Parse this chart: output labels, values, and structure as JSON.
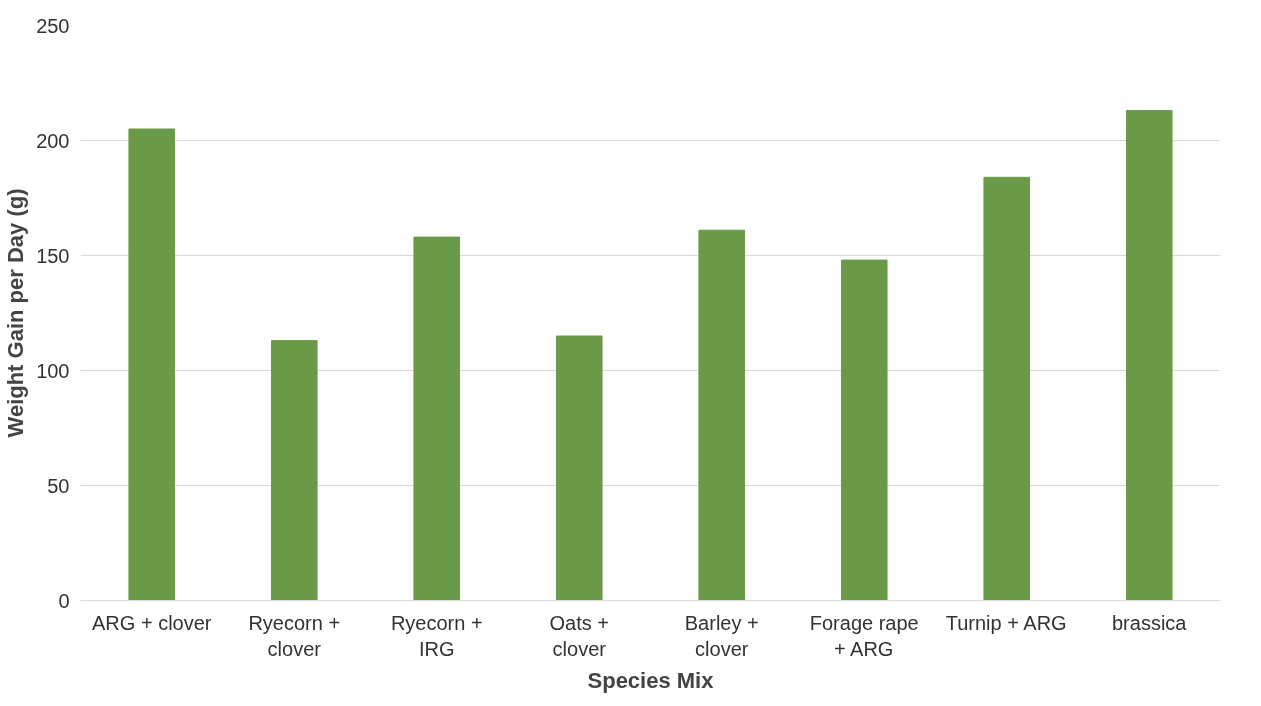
{
  "chart_data": {
    "type": "bar",
    "xlabel": "Species Mix",
    "ylabel": "Weight Gain per Day (g)",
    "categories": [
      "ARG + clover",
      "Ryecorn + clover",
      "Ryecorn + IRG",
      "Oats + clover",
      "Barley + clover",
      "Forage rape + ARG",
      "Turnip + ARG",
      "brassica"
    ],
    "values": [
      205,
      113,
      158,
      115,
      161,
      148,
      184,
      213
    ],
    "color": "#6a9a48",
    "ylim": [
      0,
      250
    ],
    "yticks": [
      0,
      50,
      100,
      150,
      200,
      250
    ],
    "grid": "y"
  }
}
